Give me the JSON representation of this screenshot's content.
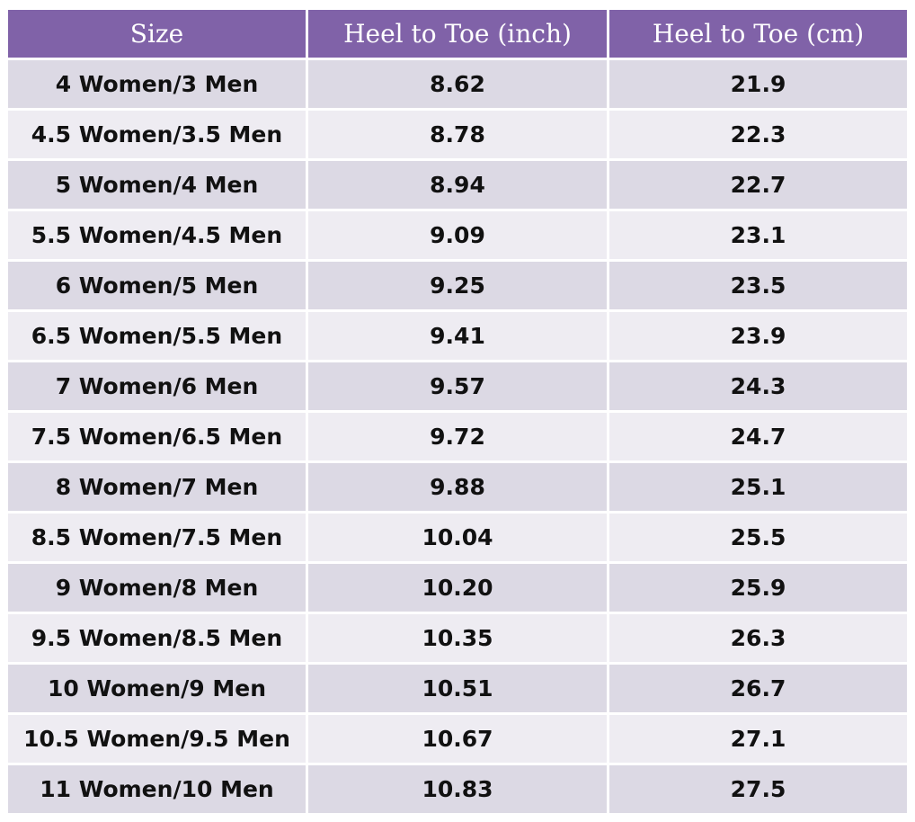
{
  "table": {
    "headers": [
      "Size",
      "Heel to Toe (inch)",
      "Heel to Toe (cm)"
    ],
    "rows": [
      [
        "4 Women/3 Men",
        "8.62",
        "21.9"
      ],
      [
        "4.5 Women/3.5 Men",
        "8.78",
        "22.3"
      ],
      [
        "5 Women/4 Men",
        "8.94",
        "22.7"
      ],
      [
        "5.5 Women/4.5 Men",
        "9.09",
        "23.1"
      ],
      [
        "6 Women/5 Men",
        "9.25",
        "23.5"
      ],
      [
        "6.5 Women/5.5 Men",
        "9.41",
        "23.9"
      ],
      [
        "7 Women/6 Men",
        "9.57",
        "24.3"
      ],
      [
        "7.5 Women/6.5 Men",
        "9.72",
        "24.7"
      ],
      [
        "8 Women/7 Men",
        "9.88",
        "25.1"
      ],
      [
        "8.5 Women/7.5 Men",
        "10.04",
        "25.5"
      ],
      [
        "9 Women/8 Men",
        "10.20",
        "25.9"
      ],
      [
        "9.5 Women/8.5 Men",
        "10.35",
        "26.3"
      ],
      [
        "10 Women/9 Men",
        "10.51",
        "26.7"
      ],
      [
        "10.5 Women/9.5 Men",
        "10.67",
        "27.1"
      ],
      [
        "11 Women/10 Men",
        "10.83",
        "27.5"
      ]
    ]
  },
  "colors": {
    "header_bg": "#8062a8",
    "header_text": "#ffffff",
    "row_odd_bg": "#dcd9e4",
    "row_even_bg": "#eeecf2",
    "body_text": "#111111"
  }
}
